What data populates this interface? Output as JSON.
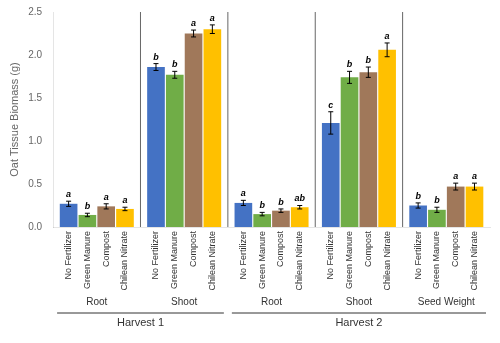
{
  "chart_data": {
    "type": "bar",
    "ylabel": "Oat Tissue Biomass (g)",
    "categories": [
      "Root",
      "Shoot",
      "Root",
      "Shoot",
      "Seed Weight"
    ],
    "category_groups": [
      {
        "label": "Harvest 1",
        "size": 2
      },
      {
        "label": "Harvest 2",
        "size": 3
      }
    ],
    "series": [
      {
        "name": "No Fertilizer",
        "color": "#4472C4",
        "values": [
          0.27,
          1.86,
          0.28,
          1.21,
          0.25
        ],
        "errors": [
          0.03,
          0.04,
          0.03,
          0.13,
          0.03
        ],
        "significance_labels": [
          "a",
          "b",
          "a",
          "c",
          "b"
        ]
      },
      {
        "name": "Green Manure",
        "color": "#70AD47",
        "values": [
          0.14,
          1.77,
          0.15,
          1.74,
          0.2
        ],
        "errors": [
          0.02,
          0.04,
          0.02,
          0.07,
          0.03
        ],
        "significance_labels": [
          "b",
          "b",
          "b",
          "b",
          "b"
        ]
      },
      {
        "name": "Compost",
        "color": "#A0785A",
        "values": [
          0.24,
          2.25,
          0.19,
          1.8,
          0.47
        ],
        "errors": [
          0.03,
          0.04,
          0.02,
          0.06,
          0.04
        ],
        "significance_labels": [
          "a",
          "a",
          "b",
          "b",
          "a"
        ]
      },
      {
        "name": "Chilean Nitrate",
        "color": "#FFC000",
        "values": [
          0.21,
          2.3,
          0.23,
          2.06,
          0.47
        ],
        "errors": [
          0.02,
          0.05,
          0.02,
          0.08,
          0.04
        ],
        "significance_labels": [
          "a",
          "a",
          "ab",
          "a",
          "a"
        ]
      }
    ],
    "ylim": [
      0,
      2.5
    ],
    "yticks": [
      {
        "value": 0,
        "label": "0.0"
      },
      0.5,
      {
        "value": 1,
        "label": "1.0"
      },
      1.5,
      {
        "value": 2,
        "label": "2.0"
      },
      2.5
    ],
    "grid": false
  }
}
